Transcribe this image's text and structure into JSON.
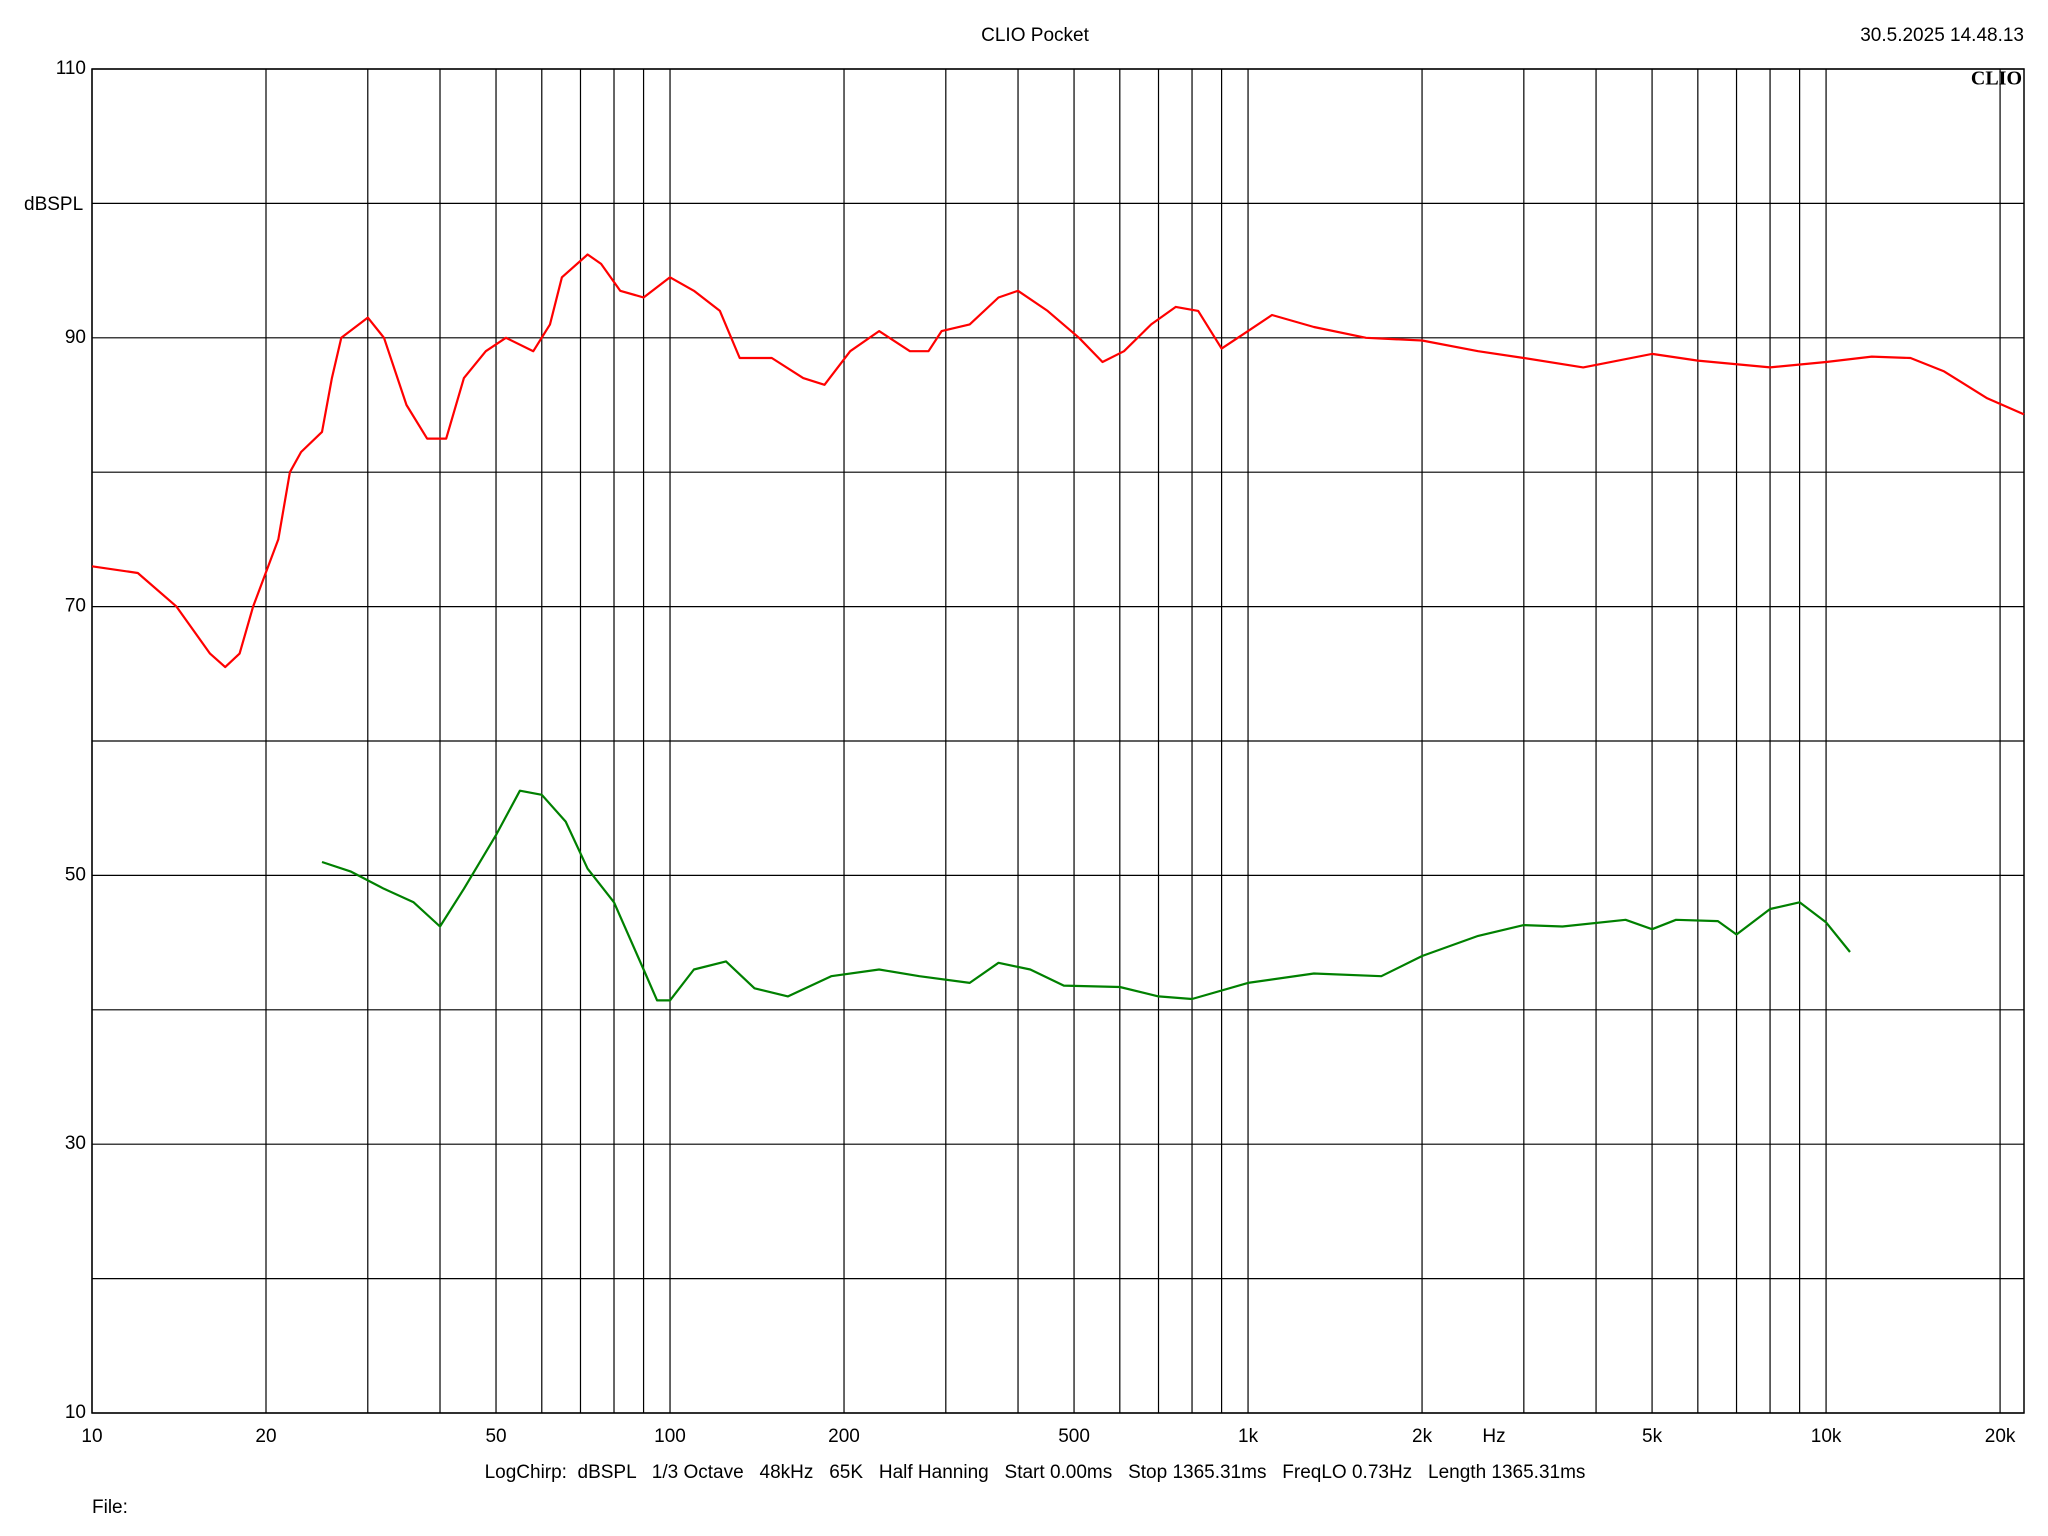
{
  "chart_data": {
    "type": "line",
    "title": "CLIO Pocket",
    "timestamp": "30.5.2025 14.48.13",
    "logo": "CLIO",
    "y_label": "dBSPL",
    "x_label": "Hz",
    "footer": "LogChirp:  dBSPL   1/3 Octave   48kHz   65K   Half Hanning   Start 0.00ms   Stop 1365.31ms   FreqLO 0.73Hz   Length 1365.31ms",
    "file_label": "File:",
    "x_log": true,
    "grid": true,
    "xlim": [
      10,
      22000
    ],
    "ylim": [
      10,
      110
    ],
    "xticks": [
      10,
      20,
      50,
      100,
      200,
      500,
      {
        "value": 1000,
        "label": "1k"
      },
      {
        "value": 2000,
        "label": "2k"
      },
      {
        "value": 5000,
        "label": "5k"
      },
      {
        "value": 10000,
        "label": "10k"
      },
      {
        "value": 20000,
        "label": "20k"
      }
    ],
    "xminor": [
      30,
      40,
      60,
      70,
      80,
      90,
      300,
      400,
      600,
      700,
      800,
      900,
      3000,
      4000,
      6000,
      7000,
      8000,
      9000
    ],
    "yticks": [
      10,
      30,
      50,
      70,
      90,
      110
    ],
    "yminor": [
      20,
      40,
      60,
      80,
      100
    ],
    "series": [
      {
        "color": "#ff0000",
        "x": [
          10,
          12,
          14,
          16,
          17,
          18,
          19,
          21,
          22,
          23,
          25,
          26,
          27,
          30,
          32,
          35,
          38,
          41,
          44,
          48,
          52,
          58,
          62,
          65,
          72,
          76,
          82,
          90,
          100,
          110,
          122,
          132,
          150,
          170,
          185,
          205,
          230,
          260,
          280,
          295,
          330,
          370,
          400,
          450,
          510,
          560,
          610,
          680,
          750,
          820,
          900,
          1000,
          1100,
          1300,
          1600,
          2000,
          2500,
          3000,
          3800,
          5000,
          6000,
          8000,
          10000,
          12000,
          14000,
          16000,
          19000,
          22000
        ],
        "values": [
          73,
          72.5,
          70,
          66.5,
          65.5,
          66.5,
          70,
          75,
          80,
          81.5,
          83,
          87,
          90,
          91.5,
          90,
          85,
          82.5,
          82.5,
          87,
          89,
          90,
          89,
          91,
          94.5,
          96.2,
          95.5,
          93.5,
          93,
          94.5,
          93.5,
          92,
          88.5,
          88.5,
          87,
          86.5,
          89,
          90.5,
          89,
          89,
          90.5,
          91,
          93,
          93.5,
          92,
          90,
          88.2,
          89,
          91,
          92.3,
          92,
          89.2,
          90.5,
          91.7,
          90.8,
          90,
          89.8,
          89,
          88.5,
          87.8,
          88.8,
          88.3,
          87.8,
          88.2,
          88.6,
          88.5,
          87.5,
          85.5,
          84.3
        ]
      },
      {
        "color": "#008000",
        "x": [
          25,
          28,
          32,
          36,
          40,
          44,
          50,
          55,
          60,
          66,
          72,
          80,
          90,
          95,
          100,
          110,
          125,
          140,
          160,
          190,
          230,
          270,
          330,
          370,
          420,
          480,
          600,
          700,
          800,
          1000,
          1300,
          1700,
          2000,
          2500,
          3000,
          3500,
          4500,
          5000,
          5500,
          6500,
          7000,
          8000,
          9000,
          10000,
          11000
        ],
        "values": [
          51,
          50.3,
          49,
          48,
          46.2,
          49,
          53,
          56.3,
          56,
          54,
          50.5,
          48,
          43,
          40.7,
          40.7,
          43,
          43.6,
          41.6,
          41,
          42.5,
          43,
          42.5,
          42,
          43.5,
          43,
          41.8,
          41.7,
          41,
          40.8,
          42,
          42.7,
          42.5,
          44,
          45.5,
          46.3,
          46.2,
          46.7,
          46,
          46.7,
          46.6,
          45.6,
          47.5,
          48,
          46.5,
          44.3
        ]
      }
    ]
  }
}
